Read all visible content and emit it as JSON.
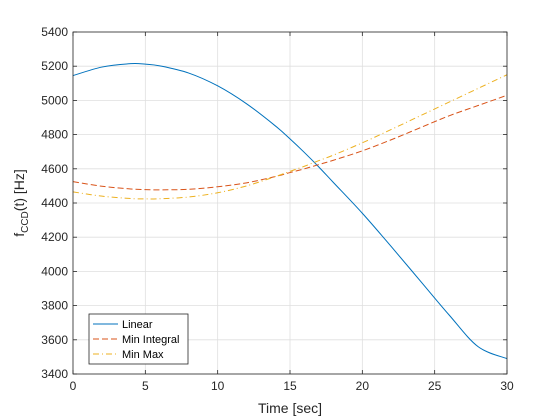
{
  "chart_data": {
    "type": "line",
    "title": "",
    "xlabel": "Time [sec]",
    "ylabel_main": "f",
    "ylabel_sub": "CCD",
    "ylabel_tail": "(t) [Hz]",
    "xlim": [
      0,
      30
    ],
    "ylim": [
      3400,
      5400
    ],
    "xticks": [
      0,
      5,
      10,
      15,
      20,
      25,
      30
    ],
    "yticks": [
      3400,
      3600,
      3800,
      4000,
      4200,
      4400,
      4600,
      4800,
      5000,
      5200,
      5400
    ],
    "grid": true,
    "legend_position": "bottom-left",
    "x": [
      0,
      2,
      4,
      5,
      6,
      8,
      10,
      12,
      14,
      15,
      16,
      17,
      18,
      20,
      22,
      24,
      26,
      28,
      30
    ],
    "series": [
      {
        "name": "Linear",
        "color": "#0072BD",
        "dash": "solid",
        "values": [
          5145,
          5195,
          5215,
          5212,
          5202,
          5160,
          5085,
          4980,
          4850,
          4775,
          4695,
          4610,
          4520,
          4340,
          4145,
          3945,
          3745,
          3560,
          3490
        ]
      },
      {
        "name": "Min Integral",
        "color": "#D95319",
        "dash": "dashed",
        "values": [
          4525,
          4498,
          4482,
          4478,
          4477,
          4480,
          4495,
          4518,
          4555,
          4578,
          4600,
          4625,
          4650,
          4705,
          4770,
          4840,
          4910,
          4970,
          5030
        ]
      },
      {
        "name": "Min Max",
        "color": "#EDB120",
        "dash": "dashdot",
        "values": [
          4465,
          4440,
          4426,
          4424,
          4425,
          4435,
          4460,
          4500,
          4555,
          4585,
          4615,
          4648,
          4680,
          4752,
          4830,
          4910,
          4990,
          5070,
          5150
        ]
      }
    ]
  }
}
